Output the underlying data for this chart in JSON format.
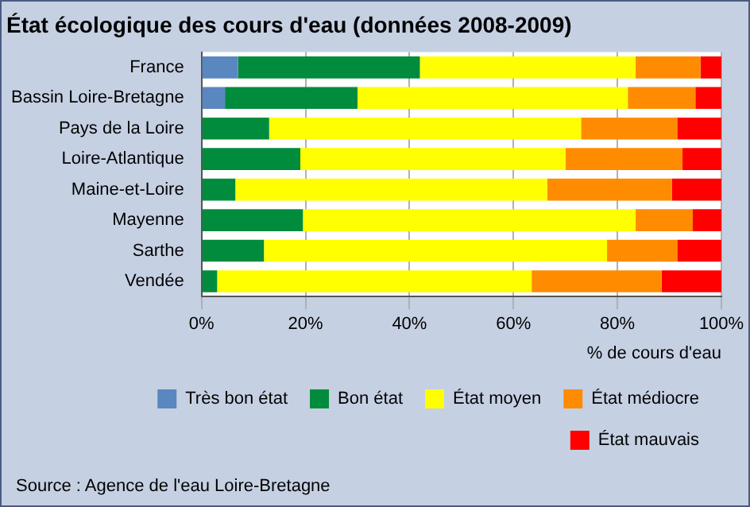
{
  "chart_data": {
    "type": "bar",
    "orientation": "horizontal",
    "stacked": true,
    "title": "État écologique des cours d'eau (données 2008-2009)",
    "xlabel": "% de cours d'eau",
    "categories": [
      "France",
      "Bassin Loire-Bretagne",
      "Pays de la Loire",
      "Loire-Atlantique",
      "Maine-et-Loire",
      "Mayenne",
      "Sarthe",
      "Vendée"
    ],
    "series": [
      {
        "name": "Très bon état",
        "color": "#5b87c0",
        "values": [
          7,
          4.5,
          0,
          0,
          0,
          0,
          0,
          0
        ]
      },
      {
        "name": "Bon état",
        "color": "#008c3c",
        "values": [
          35,
          25.5,
          13,
          19,
          6.5,
          19.5,
          12,
          3
        ]
      },
      {
        "name": "État moyen",
        "color": "#ffff00",
        "values": [
          41.5,
          52,
          60,
          51,
          60,
          64,
          66,
          60.5
        ]
      },
      {
        "name": "État médiocre",
        "color": "#ff8c00",
        "values": [
          12.5,
          13,
          18.5,
          22.5,
          24,
          11,
          13.5,
          25
        ]
      },
      {
        "name": "État mauvais",
        "color": "#ff0000",
        "values": [
          4,
          5,
          8.5,
          7.5,
          9.5,
          5.5,
          8.5,
          11.5
        ]
      }
    ],
    "xlim": [
      0,
      100
    ],
    "xticks": [
      {
        "value": 0,
        "label": "0%"
      },
      {
        "value": 20,
        "label": "20%"
      },
      {
        "value": 40,
        "label": "40%"
      },
      {
        "value": 60,
        "label": "60%"
      },
      {
        "value": 80,
        "label": "80%"
      },
      {
        "value": 100,
        "label": "100%"
      }
    ],
    "grid": "x",
    "legend": "bottom",
    "annotations": [
      "Source : Agence de l'eau Loire-Bretagne"
    ]
  }
}
